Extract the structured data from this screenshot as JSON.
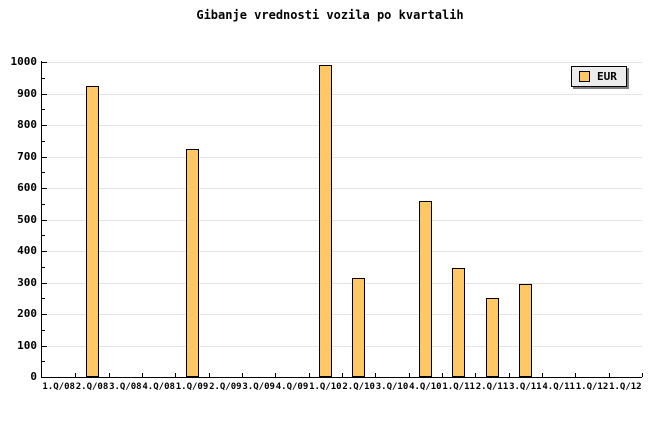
{
  "title": "Gibanje vrednosti vozila po kvartalih",
  "legend": {
    "label": "EUR"
  },
  "chart_data": {
    "type": "bar",
    "title": "Gibanje vrednosti vozila po kvartalih",
    "categories": [
      "1.Q/08",
      "2.Q/08",
      "3.Q/08",
      "4.Q/08",
      "1.Q/09",
      "2.Q/09",
      "3.Q/09",
      "4.Q/09",
      "1.Q/10",
      "2.Q/10",
      "3.Q/10",
      "4.Q/10",
      "1.Q/11",
      "2.Q/11",
      "3.Q/11",
      "4.Q/11",
      "1.Q/12",
      "1.Q/12"
    ],
    "series": [
      {
        "name": "EUR",
        "values": [
          0,
          925,
          0,
          0,
          725,
          0,
          0,
          0,
          990,
          315,
          0,
          560,
          345,
          250,
          295,
          0,
          0,
          0
        ]
      }
    ],
    "xlabel": "",
    "ylabel": "",
    "ylim": [
      0,
      1000
    ],
    "y_major_step": 100,
    "y_minor_step": 50,
    "grid": "horizontal-major",
    "legend_position": "top-right",
    "colors": {
      "bar_fill": "#FFC864",
      "bar_border": "#000000",
      "grid": "#E4E4E4",
      "axis": "#000000",
      "legend_bg": "#ECECEC",
      "legend_shadow": "#808080",
      "background": "#FFFFFF"
    }
  }
}
